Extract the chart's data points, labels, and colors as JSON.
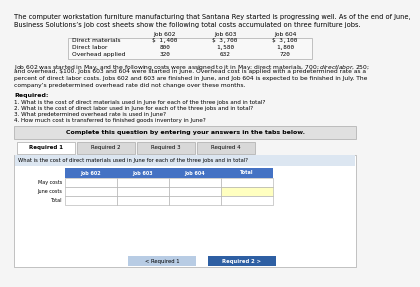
{
  "title_line1": "The computer workstation furniture manufacturing that Santana Rey started is progressing well. As of the end of June,",
  "title_line2": "Business Solutions’s job cost sheets show the following total costs accumulated on three furniture jobs.",
  "table1_headers": [
    "Job 602",
    "Job 603",
    "Job 604"
  ],
  "table1_rows": [
    [
      "Direct materials",
      "$ 1,400",
      "$ 3,700",
      "$ 3,100"
    ],
    [
      "Direct labor",
      "800",
      "1,580",
      "1,800"
    ],
    [
      "Overhead applied",
      "320",
      "632",
      "720"
    ]
  ],
  "body_lines": [
    "Job 602 was started in May, and the following costs were assigned to it in May: direct materials, $700; direct labor, $250;",
    "and overhead, $100. Jobs 603 and 604 were started in June. Overhead cost is applied with a predetermined rate as a",
    "percent of direct labor costs. Jobs 602 and 603 are finished in June, and Job 604 is expected to be finished in July. The",
    "company’s predetermined overhead rate did not change over these months."
  ],
  "required_header": "Required:",
  "required_items": [
    "1. What is the cost of direct materials used in June for each of the three jobs and in total?",
    "2. What is the cost of direct labor used in June for each of the three jobs and in total?",
    "3. What predetermined overhead rate is used in June?",
    "4. How much cost is transferred to finished goods inventory in June?"
  ],
  "complete_box_text": "Complete this question by entering your answers in the tabs below.",
  "tabs": [
    "Required 1",
    "Required 2",
    "Required 3",
    "Required 4"
  ],
  "active_tab": 0,
  "question_text": "What is the cost of direct materials used in June for each of the three jobs and in total?",
  "table2_col_headers": [
    "Job 602",
    "Job 603",
    "Job 604",
    "Total"
  ],
  "table2_row_headers": [
    "May costs",
    "June costs",
    "Total"
  ],
  "highlight_row": 1,
  "highlight_col": 3,
  "btn_left_text": "< Required 1",
  "btn_right_text": "Required 2 >",
  "bg_color": "#f5f5f5",
  "tab_active_bg": "#ffffff",
  "tab_inactive_bg": "#d8d8d8",
  "complete_box_bg": "#e0e0e0",
  "question_bg": "#dce6f1",
  "table2_header_bg": "#4472c4",
  "table2_header_fg": "#ffffff",
  "table2_cell_bg": "#ffffff",
  "table2_highlight_bg": "#ffffc0",
  "btn_left_bg": "#b8cce4",
  "btn_right_bg": "#2e5fa3",
  "btn_fg": "#ffffff",
  "text_color": "#000000",
  "border_color": "#aaaaaa",
  "section_border": "#888888"
}
